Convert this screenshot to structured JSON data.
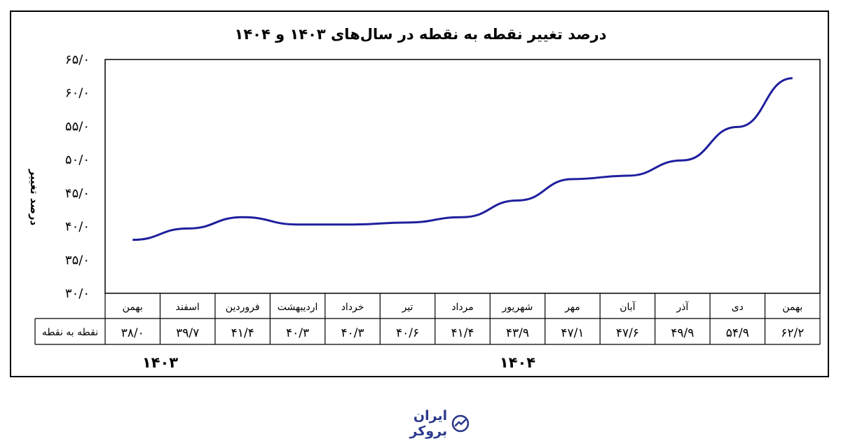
{
  "chart_data": {
    "type": "line",
    "title": "درصد تغییر نقطه به نقطه در سال‌های ۱۴۰۳ و ۱۴۰۴",
    "ylabel": "درصد تغییر",
    "xlabel": "",
    "ylim": [
      30,
      65
    ],
    "yticks": [
      "۳۰/۰",
      "۳۵/۰",
      "۴۰/۰",
      "۴۵/۰",
      "۵۰/۰",
      "۵۵/۰",
      "۶۰/۰",
      "۶۵/۰"
    ],
    "ytick_values": [
      30,
      35,
      40,
      45,
      50,
      55,
      60,
      65
    ],
    "categories": [
      "بهمن",
      "اسفند",
      "فروردین",
      "اردیبهشت",
      "خرداد",
      "تیر",
      "مرداد",
      "شهریور",
      "مهر",
      "آبان",
      "آذر",
      "دی",
      "بهمن"
    ],
    "values": [
      38.0,
      39.7,
      41.4,
      40.3,
      40.3,
      40.6,
      41.4,
      43.9,
      47.1,
      47.6,
      49.9,
      54.9,
      62.2
    ],
    "row_label": "نقطه به نقطه",
    "value_labels": [
      "۳۸/۰",
      "۳۹/۷",
      "۴۱/۴",
      "۴۰/۳",
      "۴۰/۳",
      "۴۰/۶",
      "۴۱/۴",
      "۴۳/۹",
      "۴۷/۱",
      "۴۷/۶",
      "۴۹/۹",
      "۵۴/۹",
      "۶۲/۲"
    ],
    "years": [
      {
        "label": "۱۴۰۳",
        "from": 0,
        "to": 1
      },
      {
        "label": "۱۴۰۴",
        "from": 2,
        "to": 12
      }
    ],
    "grid": false,
    "legend": "none",
    "line_color": "#1f1f9e"
  },
  "brand": {
    "name": "ایران بروکر",
    "color": "#2b3a8c"
  }
}
